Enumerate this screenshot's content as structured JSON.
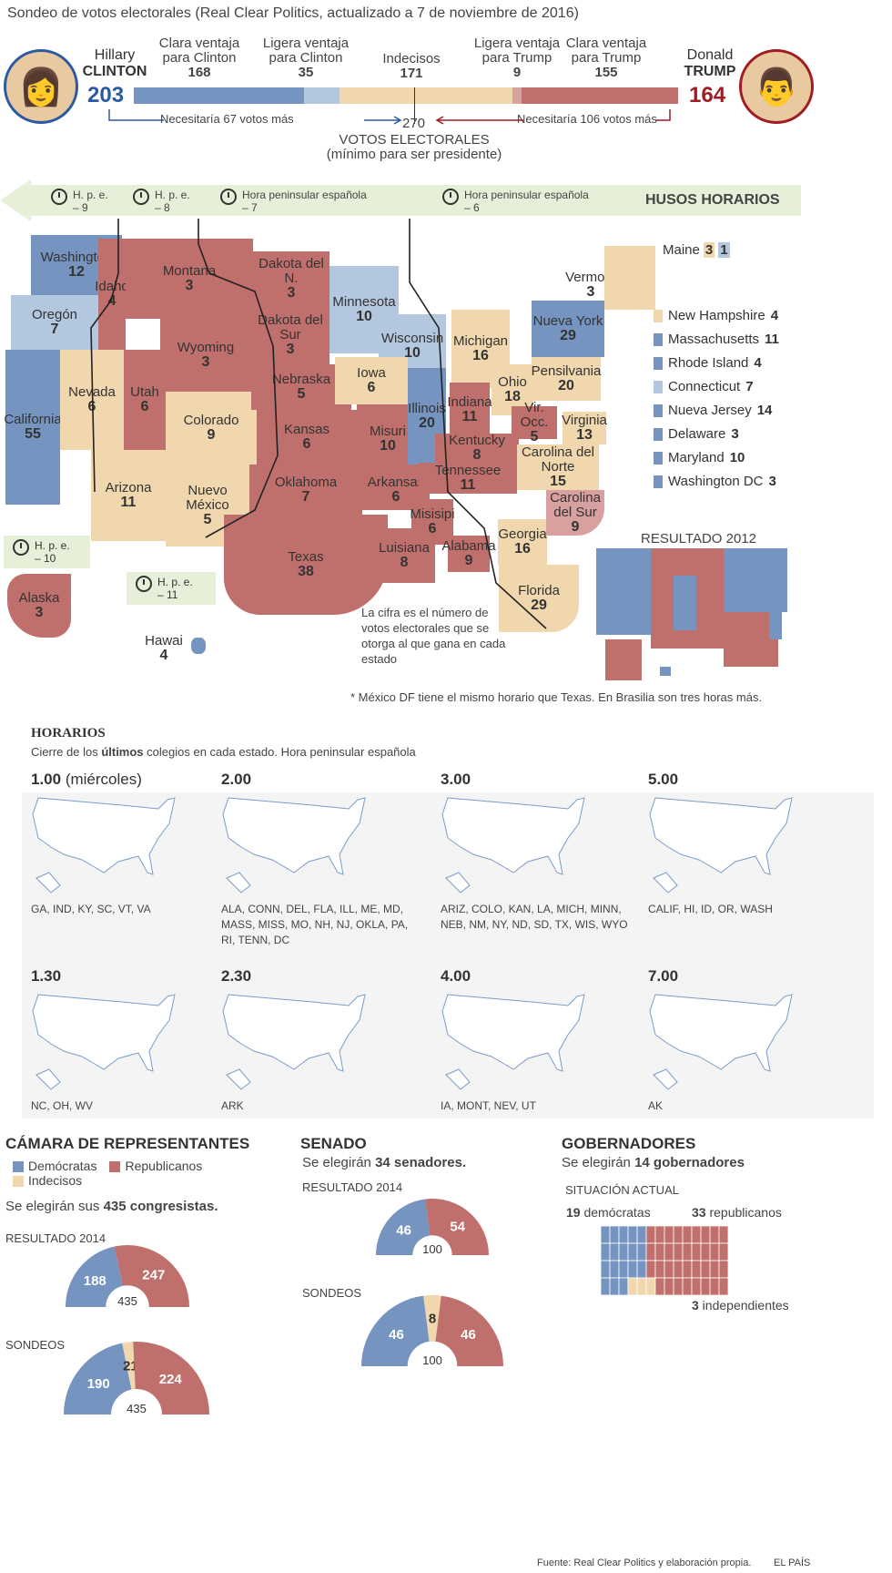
{
  "title": "Sondeo de votos electorales (Real Clear Politics, actualizado a 7 de noviembre de 2016)",
  "colors": {
    "dem": "#7594c0",
    "lean_dem": "#b3c7de",
    "tossup": "#f0d7ad",
    "lean_rep": "#d9a0a0",
    "rep": "#c0706c"
  },
  "clinton": {
    "first": "Hillary",
    "last": "CLINTON",
    "votes": "203",
    "needs": "Necesitaría 67 votos más"
  },
  "trump": {
    "first": "Donald",
    "last": "TRUMP",
    "votes": "164",
    "needs": "Necesitaría 106 votos más"
  },
  "bar": [
    {
      "label1": "Clara ventaja",
      "label2": "para Clinton",
      "value": 168,
      "value_label": "168"
    },
    {
      "label1": "Ligera ventaja",
      "label2": "para Clinton",
      "value": 35,
      "value_label": "35"
    },
    {
      "label1": "",
      "label2": "Indecisos",
      "value": 171,
      "value_label": "171"
    },
    {
      "label1": "Ligera ventaja",
      "label2": "para Trump",
      "value": 9,
      "value_label": "9"
    },
    {
      "label1": "Clara ventaja",
      "label2": "para Trump",
      "value": 155,
      "value_label": "155"
    }
  ],
  "threshold": {
    "value": "270",
    "line1": "VOTOS ELECTORALES",
    "line2": "(mínimo para ser presidente)"
  },
  "timezones": {
    "title": "HUSOS HORARIOS",
    "zones": [
      {
        "l1": "H. p. e.",
        "l2": "– 9"
      },
      {
        "l1": "H. p. e.",
        "l2": "– 8"
      },
      {
        "l1": "Hora peninsular española",
        "l2": "– 7"
      },
      {
        "l1": "Hora peninsular española",
        "l2": "– 6"
      },
      {
        "l1": "H. p. e.",
        "l2": "– 10"
      },
      {
        "l1": "H. p. e.",
        "l2": "– 11"
      }
    ]
  },
  "states": [
    {
      "name": "Washington",
      "votes": "12"
    },
    {
      "name": "Oregón",
      "votes": "7"
    },
    {
      "name": "California",
      "votes": "55"
    },
    {
      "name": "Nevada",
      "votes": "6"
    },
    {
      "name": "Idaho",
      "votes": "4"
    },
    {
      "name": "Montana",
      "votes": "3"
    },
    {
      "name": "Wyoming",
      "votes": "3"
    },
    {
      "name": "Utah",
      "votes": "6"
    },
    {
      "name": "Arizona",
      "votes": "11"
    },
    {
      "name": "Colorado",
      "votes": "9"
    },
    {
      "name": "Nuevo México",
      "votes": "5"
    },
    {
      "name": "Dakota del N.",
      "votes": "3"
    },
    {
      "name": "Dakota del Sur",
      "votes": "3"
    },
    {
      "name": "Nebraska",
      "votes": "5"
    },
    {
      "name": "Kansas",
      "votes": "6"
    },
    {
      "name": "Oklahoma",
      "votes": "7"
    },
    {
      "name": "Texas",
      "votes": "38"
    },
    {
      "name": "Minnesota",
      "votes": "10"
    },
    {
      "name": "Wisconsin",
      "votes": "10"
    },
    {
      "name": "Iowa",
      "votes": "6"
    },
    {
      "name": "Misuri",
      "votes": "10"
    },
    {
      "name": "Arkansas",
      "votes": "6"
    },
    {
      "name": "Luisiana",
      "votes": "8"
    },
    {
      "name": "Illinois",
      "votes": "20"
    },
    {
      "name": "Michigan",
      "votes": "16"
    },
    {
      "name": "Indiana",
      "votes": "11"
    },
    {
      "name": "Ohio",
      "votes": "18"
    },
    {
      "name": "Kentucky",
      "votes": "8"
    },
    {
      "name": "Tennessee",
      "votes": "11"
    },
    {
      "name": "Misisipi",
      "votes": "6"
    },
    {
      "name": "Alabama",
      "votes": "9"
    },
    {
      "name": "Georgia",
      "votes": "16"
    },
    {
      "name": "Florida",
      "votes": "29"
    },
    {
      "name": "Carolina del Sur",
      "votes": "9"
    },
    {
      "name": "Carolina del Norte",
      "votes": "15"
    },
    {
      "name": "Virginia",
      "votes": "13"
    },
    {
      "name": "Vir. Occ.",
      "votes": "5"
    },
    {
      "name": "Pensilvania",
      "votes": "20"
    },
    {
      "name": "Nueva York",
      "votes": "29"
    },
    {
      "name": "Vermont",
      "votes": "3"
    },
    {
      "name": "Alaska",
      "votes": "3"
    },
    {
      "name": "Hawai",
      "votes": "4"
    }
  ],
  "maine": {
    "name": "Maine",
    "votes_a": "3",
    "votes_b": "1"
  },
  "side_states": [
    {
      "name": "New Hampshire",
      "votes": "4"
    },
    {
      "name": "Massachusetts",
      "votes": "11"
    },
    {
      "name": "Rhode Island",
      "votes": "4"
    },
    {
      "name": "Connecticut",
      "votes": "7"
    },
    {
      "name": "Nueva Jersey",
      "votes": "14"
    },
    {
      "name": "Delaware",
      "votes": "3"
    },
    {
      "name": "Maryland",
      "votes": "10"
    },
    {
      "name": "Washington DC",
      "votes": "3"
    }
  ],
  "map_note": "La cifra es el número de votos electorales que se otorga al que gana en cada estado",
  "result_2012": "RESULTADO 2012",
  "footnote": "* México DF tiene el mismo horario que Texas. En Brasilia son tres horas más.",
  "horarios": {
    "title": "HORARIOS",
    "sub_a": "Cierre de los ",
    "sub_b": "últimos",
    "sub_c": " colegios en cada estado. Hora peninsular española",
    "items": [
      {
        "time": "1.00",
        "extra": " (miércoles)",
        "states": "GA, IND, KY, SC, VT, VA"
      },
      {
        "time": "2.00",
        "extra": "",
        "states": "ALA, CONN, DEL, FLA, ILL, ME, MD, MASS, MISS, MO, NH, NJ, OKLA, PA, RI, TENN, DC"
      },
      {
        "time": "3.00",
        "extra": "",
        "states": "ARIZ, COLO, KAN, LA, MICH, MINN, NEB, NM, NY, ND, SD, TX, WIS, WYO"
      },
      {
        "time": "5.00",
        "extra": "",
        "states": "CALIF, HI, ID, OR, WASH"
      },
      {
        "time": "1.30",
        "extra": "",
        "states": "NC, OH, WV"
      },
      {
        "time": "2.30",
        "extra": "",
        "states": "ARK"
      },
      {
        "time": "4.00",
        "extra": "",
        "states": "IA, MONT, NEV, UT"
      },
      {
        "time": "7.00",
        "extra": "",
        "states": "AK"
      }
    ]
  },
  "house": {
    "title": "CÁMARA DE REPRESENTANTES",
    "leg_d": "Demócratas",
    "leg_r": "Republicanos",
    "leg_u": "Indecisos",
    "sub_a": "Se elegirán sus ",
    "sub_b": "435 congresistas.",
    "r2014": {
      "label": "RESULTADO 2014",
      "total": "435",
      "parts": [
        {
          "v": 188,
          "c": "#7594c0"
        },
        {
          "v": 247,
          "c": "#c0706c"
        }
      ]
    },
    "polls": {
      "label": "SONDEOS",
      "total": "435",
      "parts": [
        {
          "v": 190,
          "c": "#7594c0"
        },
        {
          "v": 21,
          "c": "#f0d7ad"
        },
        {
          "v": 224,
          "c": "#c0706c"
        }
      ]
    }
  },
  "senate": {
    "title": "SENADO",
    "sub_a": "Se elegirán ",
    "sub_b": "34 senadores.",
    "r2014": {
      "label": "RESULTADO 2014",
      "total": "100",
      "parts": [
        {
          "v": 46,
          "c": "#7594c0"
        },
        {
          "v": 54,
          "c": "#c0706c"
        }
      ]
    },
    "polls": {
      "label": "SONDEOS",
      "total": "100",
      "parts": [
        {
          "v": 46,
          "c": "#7594c0"
        },
        {
          "v": 8,
          "c": "#f0d7ad"
        },
        {
          "v": 46,
          "c": "#c0706c"
        }
      ]
    }
  },
  "governors": {
    "title": "GOBERNADORES",
    "sub_a": "Se elegirán ",
    "sub_b": "14 gobernadores",
    "current": "SITUACIÓN ACTUAL",
    "dem": "19",
    "dem_l": " demócratas",
    "rep": "33",
    "rep_l": " republicanos",
    "ind": "3",
    "ind_l": " independientes"
  },
  "source": "Fuente: Real Clear Politics y elaboración propia.",
  "brand": "EL PAÍS"
}
